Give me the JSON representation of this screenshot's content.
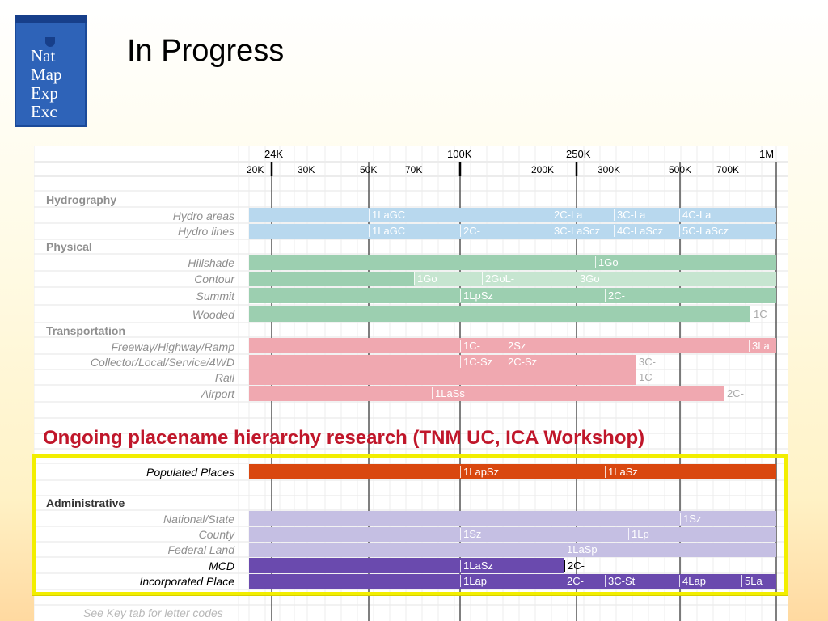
{
  "logo": {
    "lines": [
      "Nat",
      "Map",
      "Exp",
      "Exc"
    ]
  },
  "title": "In Progress",
  "scale_header": {
    "major": [
      {
        "label": "24K"
      },
      {
        "label": "100K"
      },
      {
        "label": "250K"
      },
      {
        "label": "1M"
      }
    ],
    "minor": [
      "20K",
      "30K",
      "50K",
      "70K",
      "200K",
      "300K",
      "500K",
      "700K"
    ]
  },
  "sections": [
    {
      "name": "Hydrography",
      "rows": [
        {
          "label": "Hydro areas",
          "color": "#b8d8ee",
          "cells": [
            {
              "text": "1LaGC"
            },
            {
              "text": "2C-La"
            },
            {
              "text": "3C-La"
            },
            {
              "text": "4C-La"
            }
          ]
        },
        {
          "label": "Hydro lines",
          "color": "#b8d8ee",
          "cells": [
            {
              "text": "1LaGC"
            },
            {
              "text": "2C-"
            },
            {
              "text": "3C-LaScz"
            },
            {
              "text": "4C-LaScz"
            },
            {
              "text": "5C-LaScz"
            }
          ]
        }
      ]
    },
    {
      "name": "Physical",
      "rows": [
        {
          "label": "Hillshade",
          "color": "#9ccfb0",
          "cells": [
            {
              "text": "1Go"
            }
          ]
        },
        {
          "label": "Contour",
          "color": "#9ccfb0",
          "cells": [
            {
              "text": "1Go"
            },
            {
              "text": "2GoL-"
            },
            {
              "text": "3Go"
            }
          ]
        },
        {
          "label": "Summit",
          "color": "#9ccfb0",
          "cells": [
            {
              "text": "1LpSz"
            },
            {
              "text": "2C-"
            }
          ]
        },
        {
          "label": "Wooded",
          "color": "#9ccfb0",
          "cells": [
            {
              "text": "1C-"
            }
          ]
        }
      ]
    },
    {
      "name": "Transportation",
      "rows": [
        {
          "label": "Freeway/Highway/Ramp",
          "color": "#f0a8b0",
          "cells": [
            {
              "text": "1C-"
            },
            {
              "text": "2Sz"
            },
            {
              "text": "3La"
            }
          ]
        },
        {
          "label": "Collector/Local/Service/4WD",
          "color": "#f0a8b0",
          "cells": [
            {
              "text": "1C-Sz"
            },
            {
              "text": "2C-Sz"
            },
            {
              "text": "3C-"
            }
          ]
        },
        {
          "label": "Rail",
          "color": "#f0a8b0",
          "cells": [
            {
              "text": "1C-"
            }
          ]
        },
        {
          "label": "Airport",
          "color": "#f0a8b0",
          "cells": [
            {
              "text": "1LaSs"
            },
            {
              "text": "2C-"
            }
          ]
        }
      ]
    }
  ],
  "note": "Ongoing placename hierarchy research (TNM UC, ICA Workshop)",
  "populated": {
    "label": "Populated Places",
    "color": "#d9470f",
    "cells": [
      {
        "text": "1LapSz"
      },
      {
        "text": "1LaSz"
      }
    ]
  },
  "administrative": {
    "name": "Administrative",
    "rows": [
      {
        "label": "National/State",
        "color": "#c5bfe3",
        "cells": [
          {
            "text": "1Sz"
          }
        ]
      },
      {
        "label": "County",
        "color": "#c5bfe3",
        "cells": [
          {
            "text": "1Sz"
          },
          {
            "text": "1Lp"
          }
        ]
      },
      {
        "label": "Federal Land",
        "color": "#c5bfe3",
        "cells": [
          {
            "text": "1LaSp"
          }
        ]
      },
      {
        "label": "MCD",
        "color": "#6a4aae",
        "cells": [
          {
            "text": "1LaSz"
          },
          {
            "text": "2C-"
          }
        ]
      },
      {
        "label": "Incorporated Place",
        "color": "#6a4aae",
        "cells": [
          {
            "text": "1Lap"
          },
          {
            "text": "2C-"
          },
          {
            "text": "3C-St"
          },
          {
            "text": "4Lap"
          },
          {
            "text": "5La"
          }
        ]
      }
    ]
  },
  "footer": "See Key tab for letter codes"
}
